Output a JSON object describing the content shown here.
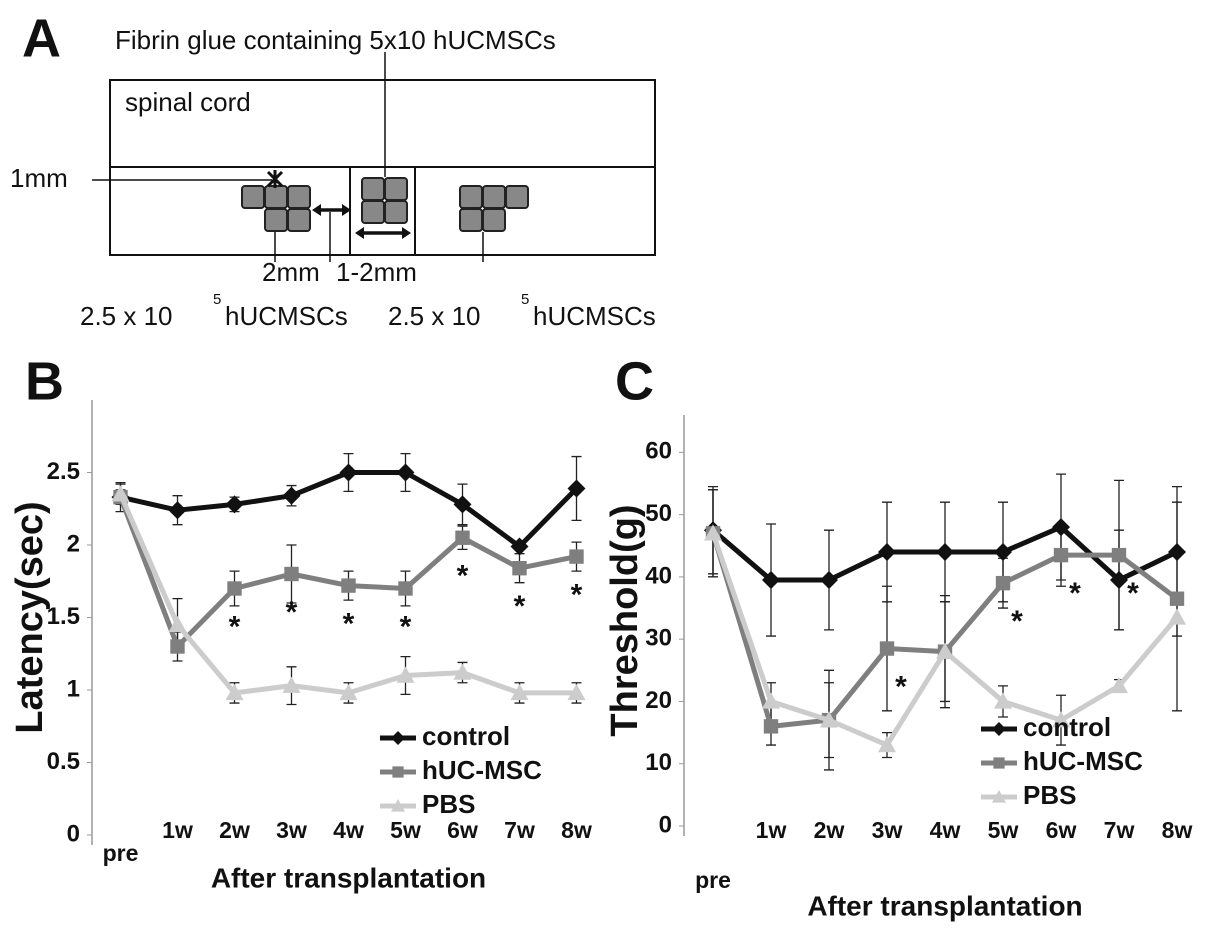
{
  "panel_label": "A",
  "diagram": {
    "title": "Fibrin glue containing 5x10  hUCMSCs",
    "region": "spinal cord",
    "depth": "1mm",
    "gap": "2mm",
    "lesion": "1-2mm",
    "left_dose": {
      "base": "2.5 x 10",
      "exponent": "5",
      "unit": "hUCMSCs"
    },
    "right_dose": {
      "base": "2.5 x 10",
      "exponent": "5",
      "unit": "hUCMSCs"
    }
  },
  "chart_data": [
    {
      "type": "line",
      "panel_label": "B",
      "ylabel": "Latency(sec)",
      "xlabel": "After transplantation",
      "categories": [
        "pre",
        "1w",
        "2w",
        "3w",
        "4w",
        "5w",
        "6w",
        "7w",
        "8w"
      ],
      "ylim": [
        0,
        3
      ],
      "yticks": [
        0,
        0.5,
        1,
        1.5,
        2,
        2.5
      ],
      "legend": "lower right",
      "series": [
        {
          "name": "control",
          "color": "#111111",
          "marker": "diamond",
          "values": [
            2.33,
            2.24,
            2.28,
            2.34,
            2.5,
            2.5,
            2.28,
            1.99,
            2.39
          ],
          "errors": [
            0.1,
            0.1,
            0.05,
            0.07,
            0.13,
            0.13,
            0.14,
            0.02,
            0.22
          ]
        },
        {
          "name": "hUC-MSC",
          "color": "#7f7f7f",
          "marker": "square",
          "values": [
            2.33,
            1.3,
            1.7,
            1.8,
            1.72,
            1.7,
            2.05,
            1.84,
            1.92
          ],
          "errors": [
            0.05,
            0.1,
            0.12,
            0.2,
            0.1,
            0.12,
            0.08,
            0.1,
            0.1
          ]
        },
        {
          "name": "PBS",
          "color": "#cccccc",
          "marker": "triangle",
          "values": [
            2.35,
            1.45,
            0.98,
            1.03,
            0.98,
            1.1,
            1.12,
            0.98,
            0.98
          ],
          "errors": [
            0.07,
            0.18,
            0.07,
            0.13,
            0.07,
            0.13,
            0.07,
            0.07,
            0.07
          ]
        }
      ],
      "annotations": [
        {
          "text": "*",
          "category": "2w",
          "series": "hUC-MSC"
        },
        {
          "text": "*",
          "category": "3w",
          "series": "hUC-MSC"
        },
        {
          "text": "*",
          "category": "4w",
          "series": "hUC-MSC"
        },
        {
          "text": "*",
          "category": "5w",
          "series": "hUC-MSC"
        },
        {
          "text": "*",
          "category": "6w",
          "series": "hUC-MSC"
        },
        {
          "text": "*",
          "category": "7w",
          "series": "hUC-MSC"
        },
        {
          "text": "*",
          "category": "8w",
          "series": "hUC-MSC"
        }
      ]
    },
    {
      "type": "line",
      "panel_label": "C",
      "ylabel": "Threshold(g)",
      "xlabel": "After transplantation",
      "categories": [
        "pre",
        "1w",
        "2w",
        "3w",
        "4w",
        "5w",
        "6w",
        "7w",
        "8w"
      ],
      "ylim": [
        0,
        66
      ],
      "yticks": [
        0,
        10,
        20,
        30,
        40,
        50,
        60
      ],
      "legend": "lower right",
      "series": [
        {
          "name": "control",
          "color": "#111111",
          "marker": "diamond",
          "values": [
            47.5,
            39.5,
            39.5,
            44,
            44,
            44,
            48,
            39.5,
            44
          ],
          "errors": [
            7,
            9,
            8,
            8,
            8,
            8,
            8.5,
            8,
            8
          ]
        },
        {
          "name": "hUC-MSC",
          "color": "#7f7f7f",
          "marker": "square",
          "values": [
            47,
            16,
            17,
            28.5,
            28,
            39,
            43.5,
            43.5,
            36.5
          ],
          "errors": [
            7,
            3,
            8,
            10,
            8,
            4,
            5,
            12,
            18
          ]
        },
        {
          "name": "PBS",
          "color": "#cccccc",
          "marker": "triangle",
          "values": [
            47,
            20,
            17,
            13,
            28,
            20,
            17,
            22.5,
            33.5
          ],
          "errors": [
            7,
            3,
            6,
            2,
            9,
            2.5,
            4,
            1,
            3
          ]
        }
      ],
      "annotations": [
        {
          "text": "*",
          "category": "3w",
          "series": "hUC-MSC"
        },
        {
          "text": "*",
          "category": "5w",
          "series": "hUC-MSC"
        },
        {
          "text": "*",
          "category": "6w",
          "series": "hUC-MSC"
        },
        {
          "text": "*",
          "category": "7w",
          "series": "hUC-MSC"
        }
      ]
    }
  ]
}
